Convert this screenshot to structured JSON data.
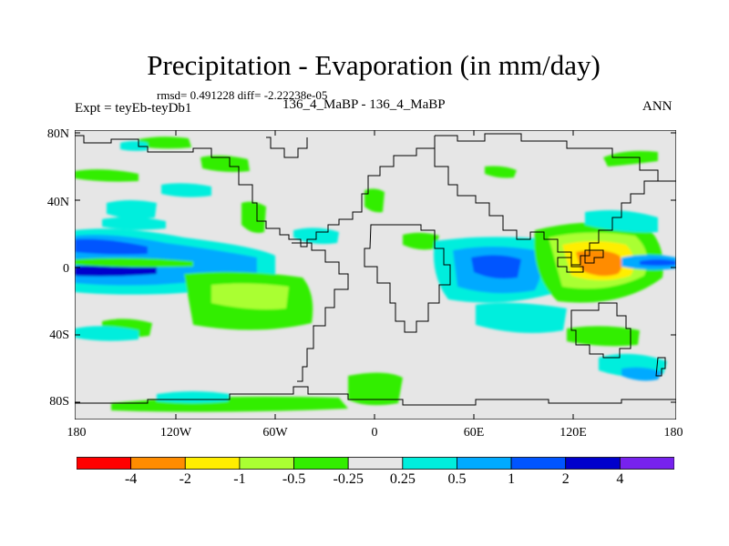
{
  "title": "Precipitation - Evaporation (in mm/day)",
  "stats": "rmsd= 0.491228 diff= -2.22238e-05",
  "expt": "Expt = teyEb-teyDb1",
  "runs": "136_4_MaBP - 136_4_MaBP",
  "season": "ANN",
  "lat_ticks": [
    "80N",
    "40N",
    "0",
    "40S",
    "80S"
  ],
  "lon_ticks": [
    "180",
    "120W",
    "60W",
    "0",
    "60E",
    "120E",
    "180"
  ],
  "colorbar": {
    "labels": [
      "-4",
      "-2",
      "-1",
      "-0.5",
      "-0.25",
      "0.25",
      "0.5",
      "1",
      "2",
      "4"
    ],
    "colors": [
      "#ff0000",
      "#ff8c00",
      "#ffee00",
      "#aaff33",
      "#33ee00",
      "#e6e6e6",
      "#00eedd",
      "#00aaff",
      "#0055ff",
      "#0000cc",
      "#7722ee"
    ]
  }
}
